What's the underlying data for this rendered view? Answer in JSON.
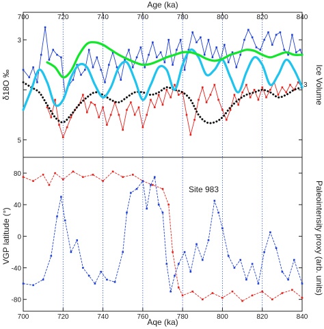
{
  "chart_data": [
    {
      "type": "line",
      "panel": "top",
      "x_axis_title": "Age (ka)",
      "x_axis_title_bottom": "Aqe (ka)",
      "x_ticks": [
        700,
        720,
        740,
        760,
        780,
        800,
        820,
        840
      ],
      "xlim": [
        700,
        840
      ],
      "y_axis_title": "δ18O ‰",
      "y_ticks_left": [
        3,
        4,
        5
      ],
      "y_tick_label_left": [
        {
          "v": 3,
          "t": "3"
        },
        {
          "v": 5,
          "t": "5"
        }
      ],
      "ylim_left": [
        2.45,
        5.35
      ],
      "y_reversed": true,
      "right_axis_title": "Ice Volume",
      "right_tick_label": "3",
      "vertical_gridlines_dotted": [
        720,
        740,
        760,
        780,
        800,
        820
      ],
      "series": [
        {
          "color": "#1f3fd6",
          "style": "thin line with square markers",
          "x": [
            700,
            703,
            705,
            707,
            709,
            711,
            713,
            715,
            717,
            719,
            721,
            723,
            725,
            727,
            729,
            731,
            733,
            735,
            737,
            739,
            741,
            743,
            745,
            747,
            749,
            751,
            753,
            755,
            757,
            759,
            761,
            763,
            765,
            767,
            769,
            771,
            773,
            775,
            777,
            779,
            781,
            783,
            785,
            787,
            789,
            791,
            793,
            795,
            797,
            799,
            801,
            803,
            805,
            807,
            809,
            811,
            813,
            815,
            817,
            819,
            821,
            823,
            825,
            827,
            829,
            831,
            833,
            835,
            837,
            839,
            840
          ],
          "y": [
            3.6,
            3.75,
            3.55,
            3.85,
            3.3,
            2.75,
            3.4,
            3.2,
            3.3,
            3.35,
            4.1,
            3.9,
            3.8,
            3.5,
            3.7,
            3.6,
            3.2,
            3.55,
            3.35,
            3.6,
            3.85,
            3.5,
            3.25,
            3.55,
            3.8,
            3.4,
            3.2,
            3.55,
            3.35,
            3.15,
            3.55,
            3.3,
            3.05,
            3.35,
            3.25,
            3.45,
            3.0,
            3.5,
            3.2,
            3.0,
            3.6,
            3.2,
            2.85,
            3.05,
            2.95,
            3.3,
            3.0,
            3.35,
            3.15,
            3.4,
            3.1,
            3.45,
            3.25,
            3.55,
            3.3,
            3.0,
            2.8,
            2.95,
            3.15,
            3.2,
            3.0,
            2.85,
            3.1,
            2.9,
            2.85,
            3.2,
            3.3,
            2.9,
            3.25,
            3.2,
            3.3
          ]
        },
        {
          "color": "#e8201b",
          "style": "thin line with square markers",
          "x": [
            712,
            714,
            716,
            718,
            720,
            722,
            724,
            726,
            728,
            730,
            732,
            734,
            736,
            738,
            740,
            742,
            744,
            746,
            748,
            750,
            752,
            754,
            756,
            758,
            760,
            762,
            764,
            766,
            768,
            770,
            772,
            774,
            776,
            778,
            780,
            782,
            784,
            786,
            788,
            790,
            792,
            794,
            796,
            798,
            800,
            802,
            804,
            806,
            808,
            810,
            812,
            814,
            816,
            818,
            820,
            822,
            824,
            826,
            828,
            830,
            832,
            834,
            836,
            838,
            840
          ],
          "y": [
            4.35,
            4.55,
            4.2,
            4.7,
            4.95,
            4.75,
            4.55,
            4.4,
            4.3,
            4.1,
            4.45,
            4.25,
            4.3,
            4.55,
            4.35,
            4.7,
            4.5,
            4.25,
            4.5,
            4.8,
            4.4,
            4.25,
            4.5,
            4.35,
            4.75,
            4.5,
            4.2,
            4.35,
            4.1,
            4.3,
            4.0,
            4.15,
            3.9,
            4.1,
            4.05,
            4.5,
            4.9,
            4.6,
            4.2,
            3.95,
            4.25,
            4.1,
            3.9,
            4.2,
            4.4,
            4.6,
            4.4,
            4.1,
            4.3,
            4.05,
            3.9,
            4.15,
            4.0,
            4.2,
            3.95,
            4.15,
            4.0,
            3.85,
            4.1,
            3.95,
            4.05,
            3.9,
            4.0,
            3.85,
            3.95
          ]
        },
        {
          "color": "#12e62a",
          "style": "thick smooth line",
          "x": [
            712,
            716,
            720,
            724,
            728,
            732,
            736,
            740,
            744,
            748,
            752,
            756,
            760,
            764,
            768,
            772,
            776,
            780,
            784,
            788,
            792,
            796,
            800,
            804,
            808,
            812,
            816,
            820,
            824,
            828,
            832,
            836,
            840
          ],
          "y": [
            3.45,
            3.55,
            3.75,
            3.62,
            3.3,
            3.08,
            3.05,
            3.1,
            3.2,
            3.3,
            3.38,
            3.45,
            3.5,
            3.48,
            3.42,
            3.35,
            3.3,
            3.25,
            3.25,
            3.3,
            3.38,
            3.42,
            3.38,
            3.3,
            3.25,
            3.2,
            3.22,
            3.3,
            3.35,
            3.3,
            3.25,
            3.3,
            3.3
          ]
        },
        {
          "color": "#1ec4ee",
          "style": "thick smooth line",
          "x": [
            700,
            704,
            708,
            712,
            716,
            720,
            724,
            728,
            732,
            736,
            740,
            744,
            748,
            752,
            756,
            760,
            764,
            768,
            772,
            776,
            780,
            784,
            788,
            792,
            796,
            800,
            804,
            808,
            812,
            816,
            820,
            824,
            828,
            832,
            836,
            840
          ],
          "y": [
            4.4,
            4.0,
            3.6,
            3.85,
            4.3,
            4.2,
            3.75,
            3.5,
            3.55,
            3.9,
            4.15,
            3.95,
            3.55,
            3.45,
            3.8,
            4.2,
            3.9,
            3.55,
            3.6,
            4.0,
            3.5,
            3.2,
            3.35,
            3.7,
            3.6,
            3.4,
            3.75,
            4.05,
            3.65,
            3.35,
            3.5,
            3.9,
            3.7,
            3.4,
            3.6,
            3.95
          ]
        },
        {
          "color": "#111111",
          "style": "dotted line",
          "x": [
            700,
            704,
            708,
            712,
            716,
            720,
            724,
            728,
            732,
            736,
            740,
            744,
            748,
            752,
            756,
            760,
            764,
            768,
            772,
            776,
            780,
            784,
            788,
            792,
            796,
            800,
            804,
            808,
            812,
            816,
            820,
            824,
            828,
            832,
            836,
            840
          ],
          "y": [
            3.85,
            3.95,
            4.05,
            4.3,
            4.55,
            4.65,
            4.5,
            4.3,
            4.15,
            4.05,
            4.1,
            4.2,
            4.25,
            4.15,
            4.05,
            4.05,
            4.1,
            4.05,
            3.95,
            4.0,
            4.05,
            4.2,
            4.5,
            4.65,
            4.65,
            4.55,
            4.35,
            4.2,
            4.1,
            4.05,
            4.0,
            4.05,
            4.15,
            4.1,
            4.0,
            3.95
          ]
        }
      ]
    },
    {
      "type": "line",
      "panel": "bottom",
      "annotation": "Site 983",
      "y_axis_title": "VGP latitude (°)",
      "y_ticks_left": [
        80,
        40,
        0,
        -40,
        -80
      ],
      "y_tick_labels_left": [
        "80",
        "40",
        "0",
        "-40",
        "-80"
      ],
      "ylim_left": [
        -95,
        100
      ],
      "right_axis_title": "Paleointensity proxy (arb. units)",
      "series": [
        {
          "color": "#e8201b",
          "style": "dashed line with markers",
          "x": [
            700,
            705,
            710,
            713,
            716,
            720,
            725,
            730,
            735,
            740,
            745,
            750,
            755,
            760,
            765,
            770,
            773,
            775,
            778,
            780,
            785,
            790,
            795,
            800,
            805,
            810,
            815,
            820,
            825,
            830,
            835,
            840
          ],
          "y": [
            75,
            70,
            78,
            65,
            80,
            72,
            82,
            75,
            78,
            70,
            82,
            75,
            78,
            70,
            65,
            60,
            40,
            -20,
            -65,
            -75,
            -70,
            -80,
            -72,
            -78,
            -70,
            -82,
            -75,
            -70,
            -80,
            -72,
            -68,
            -78
          ]
        },
        {
          "color": "#1f3fd6",
          "style": "dashed line with markers",
          "x": [
            700,
            705,
            710,
            714,
            717,
            719,
            721,
            724,
            727,
            730,
            733,
            736,
            739,
            742,
            746,
            750,
            752,
            754,
            757,
            760,
            762,
            764,
            766,
            768,
            770,
            772,
            774,
            776,
            778,
            781,
            784,
            787,
            790,
            793,
            796,
            798,
            800,
            803,
            806,
            809,
            812,
            815,
            818,
            821,
            824,
            827,
            830,
            833,
            836,
            840
          ],
          "y": [
            -60,
            -62,
            -55,
            -25,
            25,
            50,
            20,
            -20,
            -5,
            -40,
            -50,
            -60,
            -45,
            -55,
            -58,
            -20,
            30,
            55,
            60,
            70,
            35,
            65,
            75,
            40,
            30,
            -35,
            -70,
            -50,
            -35,
            -20,
            -45,
            -10,
            -30,
            -5,
            45,
            30,
            10,
            -25,
            -40,
            -30,
            -55,
            -35,
            -60,
            -20,
            5,
            -15,
            -45,
            -55,
            -30,
            -60
          ]
        }
      ]
    }
  ]
}
